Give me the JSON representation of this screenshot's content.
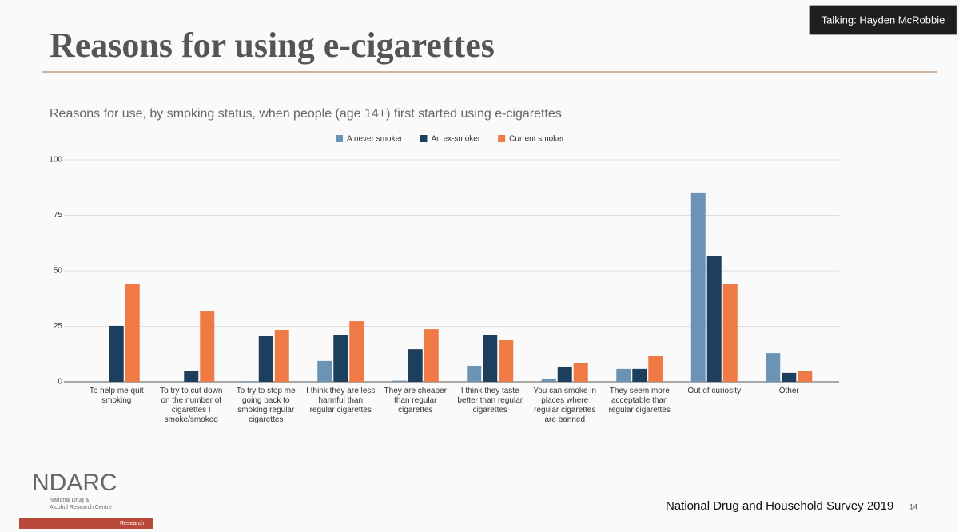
{
  "slide": {
    "title": "Reasons for using e-cigarettes",
    "talking": "Talking: Hayden McRobbie",
    "footer": "National Drug and Household Survey 2019",
    "page_number": "14",
    "logo": {
      "name": "NDARC",
      "line1": "National Drug &",
      "line2": "Alcohol Research Centre",
      "bar_text": "Research"
    }
  },
  "chart_data": {
    "type": "bar",
    "title": "Reasons for use, by smoking status, when people (age 14+) first started using e-cigarettes",
    "categories": [
      "To help me quit smoking",
      "To try to cut down on the number of cigarettes I smoke/smoked",
      "To try to stop me going back to smoking regular cigarettes",
      "I think they are less harmful than regular cigarettes",
      "They are cheaper than regular cigarettes",
      "I think they taste better than regular cigarettes",
      "You can smoke in places where regular cigarettes are banned",
      "They seem more acceptable than regular cigarettes",
      "Out of curiosity",
      "Other"
    ],
    "series": [
      {
        "name": "A never smoker",
        "color": "#6b93b5",
        "values": [
          0,
          0,
          0.3,
          9.4,
          0.5,
          7.2,
          1.4,
          5.8,
          85.3,
          12.9
        ]
      },
      {
        "name": "An ex-smoker",
        "color": "#1d3f5e",
        "values": [
          25.2,
          5,
          20.5,
          21.2,
          14.7,
          20.9,
          6.5,
          5.8,
          56.5,
          4
        ]
      },
      {
        "name": "Current smoker",
        "color": "#f07a45",
        "values": [
          43.9,
          32,
          23.4,
          27.3,
          23.7,
          18.7,
          8.6,
          11.5,
          43.9,
          4.7
        ]
      }
    ],
    "ylim": [
      0,
      100
    ],
    "yticks": [
      0,
      25,
      50,
      75,
      100
    ],
    "grid": true,
    "legend": "top"
  }
}
